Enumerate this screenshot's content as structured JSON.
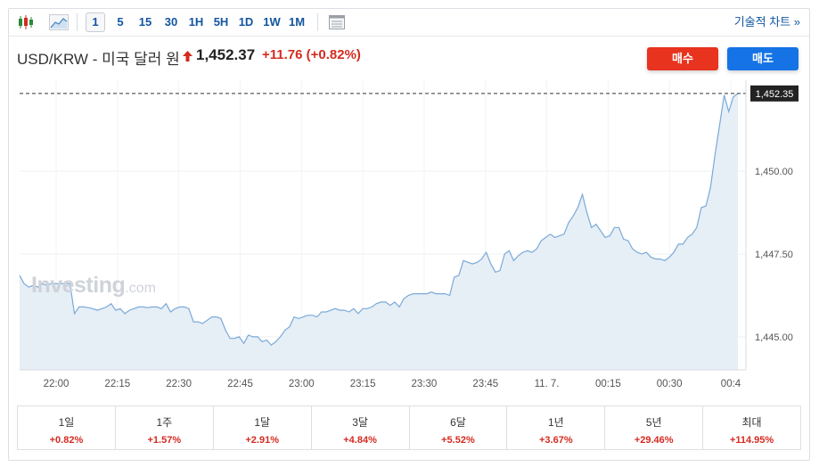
{
  "toolbar": {
    "timeframes": [
      "1",
      "5",
      "15",
      "30",
      "1H",
      "5H",
      "1D",
      "1W",
      "1M"
    ],
    "active_timeframe": "1",
    "icons": [
      "candlestick-icon",
      "area-chart-icon",
      "table-icon"
    ],
    "tech_chart_label": "기술적 차트",
    "tech_chart_arrow": "»"
  },
  "header": {
    "title": "USD/KRW - 미국 달러 원",
    "price": "1,452.37",
    "change": "+11.76 (+0.82%)",
    "buy_label": "매수",
    "sell_label": "매도"
  },
  "watermark": {
    "main": "Investing",
    "suffix": ".com"
  },
  "colors": {
    "up": "#d42b20",
    "line": "#7aaad8",
    "fill": "#e6eef6",
    "buy": "#e8331f",
    "sell": "#1573e6",
    "link": "#1256a0"
  },
  "chart_data": {
    "type": "area",
    "x_ticks": [
      "22:00",
      "22:15",
      "22:30",
      "22:45",
      "23:00",
      "23:15",
      "23:30",
      "23:45",
      "11. 7.",
      "00:15",
      "00:30",
      "00:4"
    ],
    "y_ticks": [
      "1,445.00",
      "1,447.50",
      "1,450.00"
    ],
    "ylim": [
      1444.0,
      1452.75
    ],
    "last_label": "1,452.35",
    "last_value": 1452.35,
    "grid": true,
    "series": [
      {
        "values": [
          1446.85,
          1446.6,
          1446.5,
          1446.55,
          1446.5,
          1446.6,
          1446.55,
          1446.62,
          1446.6,
          1446.6,
          1446.62,
          1446.6,
          1445.7,
          1445.9,
          1445.9,
          1445.88,
          1445.85,
          1445.8,
          1445.85,
          1445.9,
          1446.0,
          1445.8,
          1445.85,
          1445.7,
          1445.8,
          1445.85,
          1445.9,
          1445.9,
          1445.88,
          1445.9,
          1445.9,
          1445.85,
          1446.0,
          1445.75,
          1445.85,
          1445.9,
          1445.9,
          1445.85,
          1445.45,
          1445.45,
          1445.4,
          1445.5,
          1445.6,
          1445.6,
          1445.55,
          1445.2,
          1444.95,
          1444.95,
          1445.0,
          1444.8,
          1445.05,
          1445.0,
          1445.0,
          1444.85,
          1444.9,
          1444.75,
          1444.85,
          1445.0,
          1445.2,
          1445.3,
          1445.6,
          1445.55,
          1445.6,
          1445.65,
          1445.65,
          1445.6,
          1445.75,
          1445.75,
          1445.8,
          1445.85,
          1445.8,
          1445.8,
          1445.75,
          1445.85,
          1445.7,
          1445.85,
          1445.85,
          1445.9,
          1446.0,
          1446.05,
          1446.05,
          1445.95,
          1446.05,
          1445.9,
          1446.15,
          1446.25,
          1446.3,
          1446.3,
          1446.3,
          1446.3,
          1446.35,
          1446.3,
          1446.3,
          1446.3,
          1446.25,
          1446.8,
          1446.85,
          1447.3,
          1447.25,
          1447.2,
          1447.25,
          1447.35,
          1447.55,
          1447.2,
          1446.95,
          1447.0,
          1447.5,
          1447.6,
          1447.3,
          1447.45,
          1447.55,
          1447.6,
          1447.55,
          1447.65,
          1447.9,
          1448.0,
          1448.1,
          1448.0,
          1448.05,
          1448.1,
          1448.45,
          1448.65,
          1448.9,
          1449.3,
          1448.75,
          1448.3,
          1448.4,
          1448.2,
          1448.0,
          1448.05,
          1448.3,
          1448.3,
          1447.95,
          1447.9,
          1447.65,
          1447.55,
          1447.5,
          1447.55,
          1447.4,
          1447.35,
          1447.35,
          1447.3,
          1447.4,
          1447.55,
          1447.8,
          1447.8,
          1448.0,
          1448.1,
          1448.3,
          1448.9,
          1448.95,
          1449.5,
          1450.5,
          1451.4,
          1452.3,
          1451.8,
          1452.25,
          1452.35
        ]
      }
    ]
  },
  "performance": [
    {
      "label": "1일",
      "value": "+0.82%"
    },
    {
      "label": "1주",
      "value": "+1.57%"
    },
    {
      "label": "1달",
      "value": "+2.91%"
    },
    {
      "label": "3달",
      "value": "+4.84%"
    },
    {
      "label": "6달",
      "value": "+5.52%"
    },
    {
      "label": "1년",
      "value": "+3.67%"
    },
    {
      "label": "5년",
      "value": "+29.46%"
    },
    {
      "label": "최대",
      "value": "+114.95%"
    }
  ]
}
